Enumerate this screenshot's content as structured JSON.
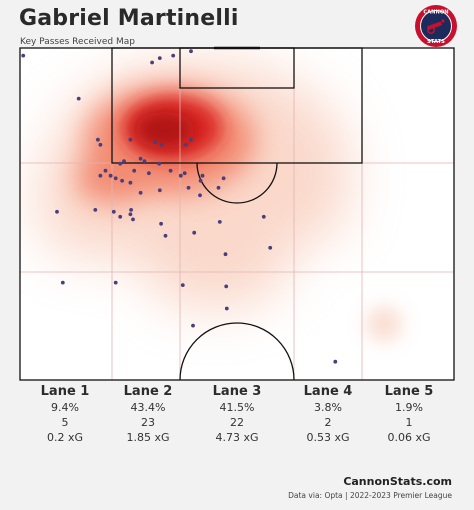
{
  "header": {
    "title": "Gabriel Martinelli",
    "subtitle": "Key Passes Received Map"
  },
  "logo": {
    "top_text": "CANNON",
    "bottom_text": "STATS",
    "colors": {
      "ring": "#c8102e",
      "inner": "#1d2b5c"
    }
  },
  "colors": {
    "background": "#f2f2f2",
    "heat_core": "#c8102e",
    "point": "#4a3f7a",
    "lines": "#111111",
    "lane_lines": "#e2b3b3"
  },
  "lanes": [
    {
      "name": "Lane 1",
      "pct": "9.4%",
      "count": "5",
      "xg": "0.2 xG"
    },
    {
      "name": "Lane 2",
      "pct": "43.4%",
      "count": "23",
      "xg": "1.85 xG"
    },
    {
      "name": "Lane 3",
      "pct": "41.5%",
      "count": "22",
      "xg": "4.73 xG"
    },
    {
      "name": "Lane 4",
      "pct": "3.8%",
      "count": "2",
      "xg": "0.53 xG"
    },
    {
      "name": "Lane 5",
      "pct": "1.9%",
      "count": "1",
      "xg": "0.06 xG"
    }
  ],
  "chart_data": {
    "type": "scatter",
    "title": "Gabriel Martinelli",
    "subtitle": "Key Passes Received Map",
    "x_range": [
      0,
      68
    ],
    "y_range": [
      0,
      52.5
    ],
    "points": [
      [
        0.5,
        1.2
      ],
      [
        9.2,
        8
      ],
      [
        20.7,
        2.3
      ],
      [
        21.9,
        1.6
      ],
      [
        24,
        1.2
      ],
      [
        26.8,
        0.5
      ],
      [
        12.2,
        14.5
      ],
      [
        12.6,
        15.3
      ],
      [
        17.3,
        14.5
      ],
      [
        21.2,
        14.9
      ],
      [
        22.2,
        15.3
      ],
      [
        26,
        15.3
      ],
      [
        26.8,
        14.5
      ],
      [
        15.7,
        18.3
      ],
      [
        16.3,
        17.9
      ],
      [
        18.9,
        17.5
      ],
      [
        19.5,
        17.9
      ],
      [
        20.2,
        19.8
      ],
      [
        21.8,
        18.3
      ],
      [
        23.6,
        19.4
      ],
      [
        12.6,
        20.2
      ],
      [
        13.4,
        19.4
      ],
      [
        14.2,
        20.2
      ],
      [
        15,
        20.6
      ],
      [
        16,
        21
      ],
      [
        17.3,
        21.3
      ],
      [
        17.9,
        19.4
      ],
      [
        25.2,
        20.2
      ],
      [
        25.8,
        19.8
      ],
      [
        28.3,
        21
      ],
      [
        28.6,
        20.2
      ],
      [
        18.9,
        22.9
      ],
      [
        21.9,
        22.5
      ],
      [
        26.4,
        22.1
      ],
      [
        28.2,
        23.3
      ],
      [
        31.1,
        22.1
      ],
      [
        31.9,
        20.6
      ],
      [
        5.8,
        25.9
      ],
      [
        11.8,
        25.6
      ],
      [
        14.7,
        25.9
      ],
      [
        15.7,
        26.7
      ],
      [
        17.4,
        25.6
      ],
      [
        17.7,
        27.1
      ],
      [
        17.3,
        26.3
      ],
      [
        22.1,
        27.8
      ],
      [
        22.8,
        29.7
      ],
      [
        27.3,
        29.2
      ],
      [
        31.3,
        27.5
      ],
      [
        38.2,
        26.7
      ],
      [
        39.2,
        31.6
      ],
      [
        32.2,
        32.6
      ],
      [
        32.3,
        37.7
      ],
      [
        25.5,
        37.5
      ],
      [
        15,
        37.1
      ],
      [
        6.7,
        37.1
      ],
      [
        32.4,
        41.2
      ],
      [
        27.1,
        43.9
      ],
      [
        49.4,
        49.6
      ]
    ],
    "lanes": [
      {
        "label": "Lane 1",
        "share_pct": 9.4,
        "count": 5,
        "xg": 0.2
      },
      {
        "label": "Lane 2",
        "share_pct": 43.4,
        "count": 23,
        "xg": 1.85
      },
      {
        "label": "Lane 3",
        "share_pct": 41.5,
        "count": 22,
        "xg": 4.73
      },
      {
        "label": "Lane 4",
        "share_pct": 3.8,
        "count": 2,
        "xg": 0.53
      },
      {
        "label": "Lane 5",
        "share_pct": 1.9,
        "count": 1,
        "xg": 0.06
      }
    ],
    "density_overlay": true,
    "density_color": "#c8102e"
  },
  "footer": {
    "brand": "CannonStats.com",
    "source": "Data via: Opta | 2022-2023 Premier League"
  }
}
